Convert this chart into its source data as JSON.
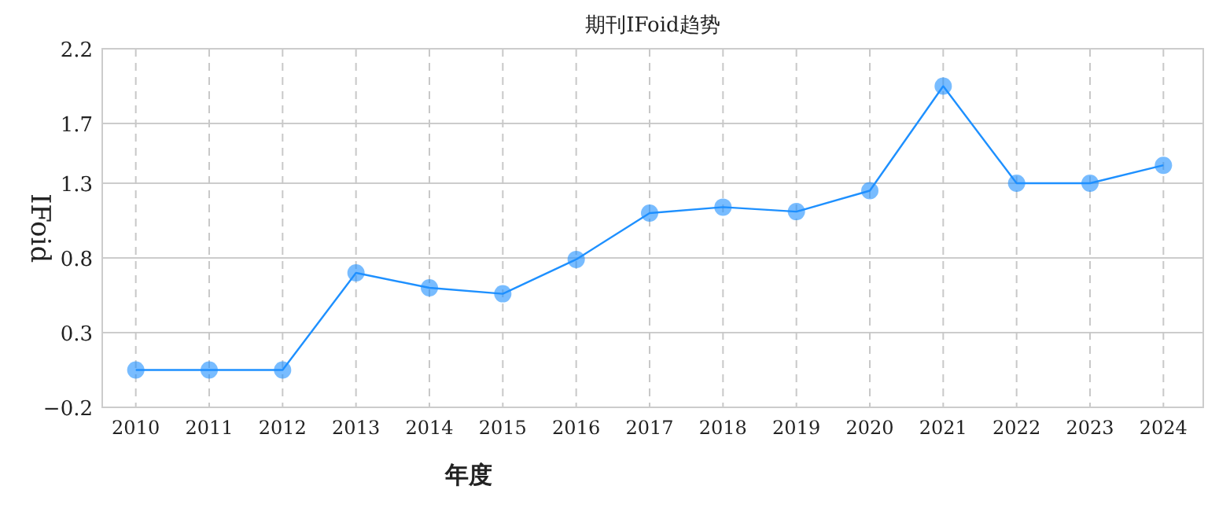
{
  "chart_data": {
    "type": "line",
    "title": "期刊IFoid趋势",
    "xlabel": "年度",
    "ylabel": "IFoid",
    "categories": [
      "2010",
      "2011",
      "2012",
      "2013",
      "2014",
      "2015",
      "2016",
      "2017",
      "2018",
      "2019",
      "2020",
      "2021",
      "2022",
      "2023",
      "2024"
    ],
    "series": [
      {
        "color": "#1e90ff",
        "values": [
          0.05,
          0.05,
          0.05,
          0.7,
          0.6,
          0.56,
          0.79,
          1.1,
          1.14,
          1.11,
          1.25,
          1.95,
          1.3,
          1.3,
          1.42
        ]
      }
    ],
    "ylim": [
      -0.2,
      2.2
    ],
    "yticks": [
      -0.2,
      0.3,
      0.8,
      1.3,
      1.7,
      2.2
    ],
    "grid": true,
    "marker": "circle",
    "line_style": "solid"
  }
}
